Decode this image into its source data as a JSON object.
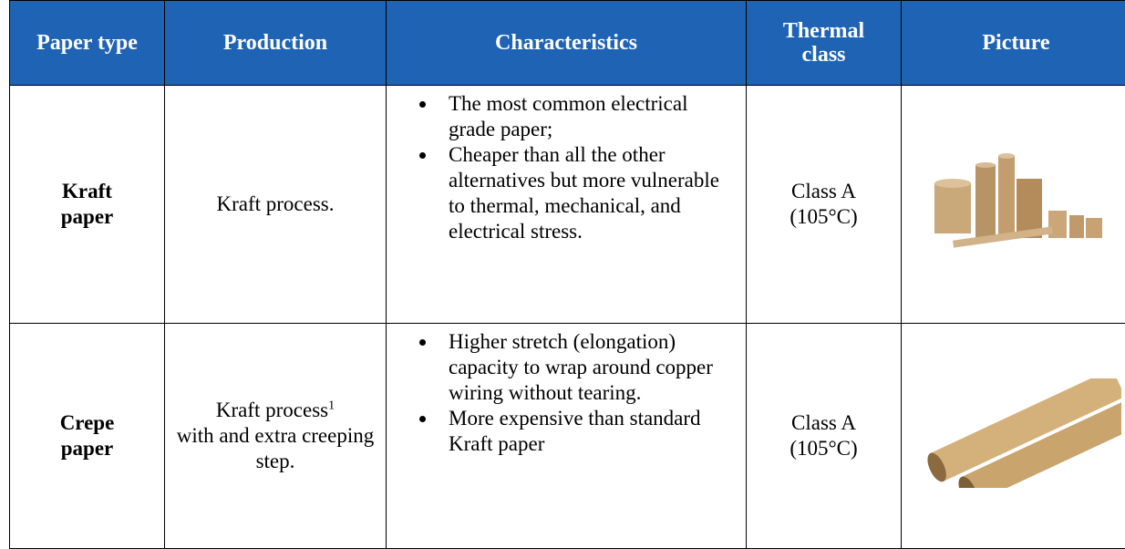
{
  "table": {
    "header": [
      "Paper type",
      "Production",
      "Characteristics",
      "Thermal class",
      "Picture"
    ],
    "rows": [
      {
        "paper_type": "Kraft paper",
        "production": {
          "text": "Kraft process."
        },
        "characteristics": [
          "The most common electrical grade paper;",
          "Cheaper than all the other alternatives but more vulnerable to thermal, mechanical, and electrical stress."
        ],
        "thermal_class": [
          "Class A",
          "(105°C)"
        ]
      },
      {
        "paper_type": "Crepe paper",
        "production": {
          "text": "Kraft process",
          "footnote": "1",
          "continuation": "with and extra creeping step."
        },
        "characteristics": [
          "Higher stretch (elongation) capacity to wrap around copper wiring without tearing.",
          "More expensive than standard Kraft paper"
        ],
        "thermal_class": [
          "Class A",
          "(105°C)"
        ]
      }
    ]
  }
}
